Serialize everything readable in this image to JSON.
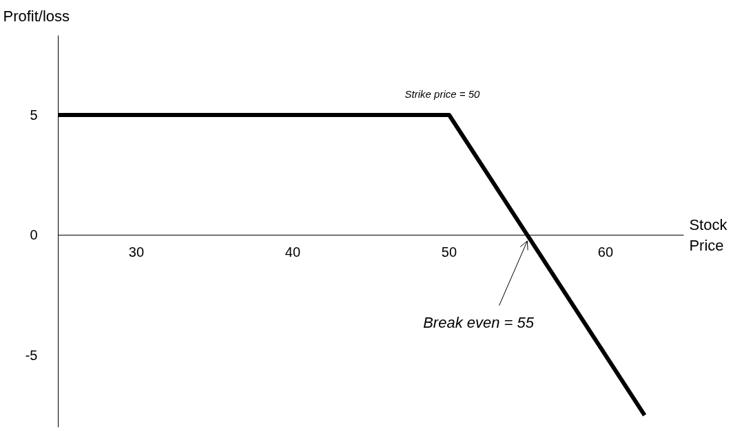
{
  "chart_data": {
    "type": "line",
    "xlabel": "Stock Price",
    "ylabel": "Profit/loss",
    "x": [
      25,
      50,
      55,
      62.5
    ],
    "series": [
      {
        "color": "#000000",
        "values": [
          5,
          5,
          0,
          -7.5
        ]
      }
    ],
    "xlim": [
      25,
      65
    ],
    "ylim": [
      -8,
      8.3
    ],
    "xticks": [
      30,
      40,
      50,
      60
    ],
    "yticks": [
      -5,
      0,
      5
    ],
    "annotations": [
      {
        "text": "Strike price = 50",
        "x": 50,
        "y": 5
      },
      {
        "text": "Break even = 55",
        "x": 55,
        "y": 0
      }
    ],
    "grid": false,
    "marker": "none",
    "line_style": "solid"
  }
}
